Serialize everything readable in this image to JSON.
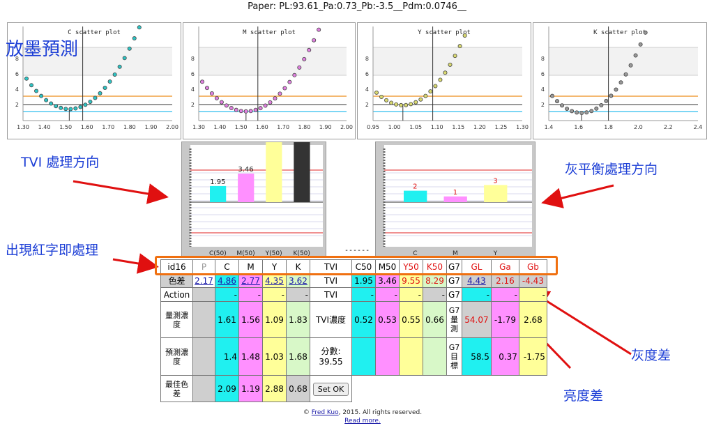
{
  "header_text": "Paper: PL:93.61_Pa:0.73_Pb:-3.5__Pdm:0.0746__",
  "annotations": {
    "forecast": "放墨預測",
    "tvi_dir": "TVI 處理方向",
    "gray_dir": "灰平衡處理方向",
    "red_text": "出現紅字即處理",
    "gray_diff": "灰度差",
    "light_diff": "亮度差"
  },
  "scatter_plots": [
    {
      "title": "C scatter plot",
      "xticks": [
        "1.30",
        "1.40",
        "1.50",
        "1.60",
        "1.70",
        "1.80",
        "1.90",
        "2.00"
      ],
      "yticks": [
        "2",
        "4",
        "6",
        "8"
      ],
      "color": "#2ec4c4"
    },
    {
      "title": "M scatter plot",
      "xticks": [
        "1.30",
        "1.40",
        "1.50",
        "1.60",
        "1.70",
        "1.80",
        "1.90",
        "2.00"
      ],
      "yticks": [
        "2",
        "4",
        "6",
        "8"
      ],
      "color": "#e080e0"
    },
    {
      "title": "Y scatter plot",
      "xticks": [
        "0.95",
        "1.00",
        "1.05",
        "1.10",
        "1.15",
        "1.20",
        "1.25",
        "1.30"
      ],
      "yticks": [
        "2",
        "4",
        "6",
        "8"
      ],
      "color": "#d8d870"
    },
    {
      "title": "K scatter plot",
      "xticks": [
        "1.4",
        "1.6",
        "1.8",
        "2.0",
        "2.2",
        "2.4"
      ],
      "yticks": [
        "2",
        "4",
        "6",
        "8"
      ],
      "color": "#999999"
    }
  ],
  "tvi_chart": {
    "labels": [
      "C(50)",
      "M(50)",
      "Y(50)",
      "K(50)"
    ],
    "value_labels": [
      "1.95",
      "3.46",
      "",
      ""
    ],
    "values": [
      1.95,
      3.46,
      9.55,
      8.29
    ],
    "colors": [
      "#20f0f0",
      "#ff90ff",
      "#ffff99",
      "#333333"
    ]
  },
  "separator": "------",
  "gray_chart": {
    "labels": [
      "C",
      "M",
      "Y"
    ],
    "value_labels": [
      "2",
      "1",
      "3"
    ],
    "values": [
      2,
      1,
      3
    ],
    "colors": [
      "#20f0f0",
      "#ff90ff",
      "#ffff99"
    ]
  },
  "table": {
    "header": [
      "id16",
      "P",
      "C",
      "M",
      "Y",
      "K",
      "TVI",
      "C50",
      "M50",
      "Y50",
      "K50",
      "G7",
      "GL",
      "Ga",
      "Gb"
    ],
    "row_delta": {
      "label": "色差",
      "P": "2.17",
      "C": "4.86",
      "M": "2.77",
      "Y": "4.35",
      "K": "3.62",
      "tvi": "TVI",
      "C50": "1.95",
      "M50": "3.46",
      "Y50": "9.55",
      "K50": "8.29",
      "g7": "G7",
      "GL": "4.43",
      "Ga": "2.16",
      "Gb": "-4.43"
    },
    "row_action": {
      "label": "Action",
      "C": "-",
      "M": "-",
      "Y": "-",
      "K": "-",
      "tvi": "TVI",
      "C50": "-",
      "M50": "-",
      "Y50": "-",
      "K50": "-",
      "g7": "G7",
      "GL": "-",
      "Ga": "-",
      "Gb": "-"
    },
    "row_measured": {
      "label": "量測濃度",
      "C": "1.61",
      "M": "1.56",
      "Y": "1.09",
      "K": "1.83",
      "tvi": "TVI濃度",
      "C50": "0.52",
      "M50": "0.53",
      "Y50": "0.55",
      "K50": "0.66",
      "g7": "G7量測",
      "GL": "54.07",
      "Ga": "-1.79",
      "Gb": "2.68"
    },
    "row_predicted": {
      "label": "預測濃度",
      "C": "1.4",
      "M": "1.48",
      "Y": "1.03",
      "K": "1.68",
      "score_label": "分數:",
      "score": "39.55",
      "g7": "G7目標",
      "GL": "58.5",
      "Ga": "0.37",
      "Gb": "-1.75"
    },
    "row_best": {
      "label": "最佳色差",
      "C": "2.09",
      "M": "1.19",
      "Y": "2.88",
      "K": "0.68",
      "button": "Set OK"
    }
  },
  "footer": {
    "copyright_pre": "© ",
    "author": "Fred Kuo",
    "copyright_post": ", 2015. All rights reserved.",
    "read_more": "Read more."
  },
  "colors": {
    "accent_orange": "#f07010",
    "arrow_red": "#e01010",
    "annotation_blue": "#1d3fd6"
  }
}
